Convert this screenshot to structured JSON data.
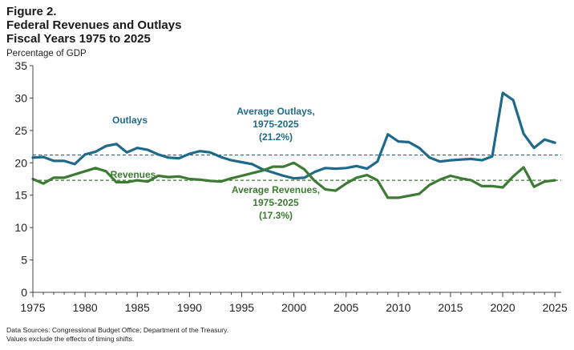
{
  "figure": {
    "label": "Figure 2.",
    "title": "Federal Revenues and Outlays",
    "subtitle": "Fiscal Years 1975 to 2025",
    "unit": "Percentage of GDP"
  },
  "colors": {
    "outlays": "#1f6a8a",
    "revenues": "#3d7a34",
    "axis": "#444444"
  },
  "chart_data": {
    "type": "line",
    "title": "Federal Revenues and Outlays",
    "subtitle": "Fiscal Years 1975 to 2025",
    "ylabel": "Percentage of GDP",
    "xlim": [
      1975,
      2025
    ],
    "ylim": [
      0,
      35
    ],
    "yticks": [
      0,
      5,
      10,
      15,
      20,
      25,
      30,
      35
    ],
    "xticks": [
      1975,
      1980,
      1985,
      1990,
      1995,
      2000,
      2005,
      2010,
      2015,
      2020,
      2025
    ],
    "grid": false,
    "x": [
      1975,
      1976,
      1977,
      1978,
      1979,
      1980,
      1981,
      1982,
      1983,
      1984,
      1985,
      1986,
      1987,
      1988,
      1989,
      1990,
      1991,
      1992,
      1993,
      1994,
      1995,
      1996,
      1997,
      1998,
      1999,
      2000,
      2001,
      2002,
      2003,
      2004,
      2005,
      2006,
      2007,
      2008,
      2009,
      2010,
      2011,
      2012,
      2013,
      2014,
      2015,
      2016,
      2017,
      2018,
      2019,
      2020,
      2021,
      2022,
      2023,
      2024,
      2025
    ],
    "series": [
      {
        "name": "Outlays",
        "color": "#1f6a8a",
        "values": [
          20.8,
          20.9,
          20.3,
          20.3,
          19.8,
          21.3,
          21.7,
          22.6,
          22.9,
          21.6,
          22.3,
          22.0,
          21.3,
          20.8,
          20.7,
          21.4,
          21.8,
          21.6,
          20.9,
          20.4,
          20.1,
          19.8,
          19.0,
          18.5,
          18.0,
          17.6,
          17.7,
          18.6,
          19.2,
          19.1,
          19.2,
          19.5,
          19.1,
          20.2,
          24.4,
          23.3,
          23.2,
          22.3,
          20.8,
          20.2,
          20.4,
          20.5,
          20.6,
          20.4,
          21.0,
          30.8,
          29.7,
          24.5,
          22.3,
          23.6,
          23.1
        ]
      },
      {
        "name": "Revenues",
        "color": "#3d7a34",
        "values": [
          17.5,
          16.8,
          17.7,
          17.7,
          18.2,
          18.7,
          19.2,
          18.7,
          17.0,
          17.0,
          17.3,
          17.1,
          18.0,
          17.8,
          17.9,
          17.5,
          17.4,
          17.2,
          17.1,
          17.6,
          18.0,
          18.4,
          18.8,
          19.4,
          19.4,
          20.0,
          19.0,
          17.2,
          15.9,
          15.7,
          16.8,
          17.7,
          18.1,
          17.3,
          14.6,
          14.6,
          14.9,
          15.2,
          16.6,
          17.4,
          18.0,
          17.6,
          17.3,
          16.4,
          16.4,
          16.2,
          17.9,
          19.3,
          16.3,
          17.1,
          17.3
        ]
      }
    ],
    "reference_lines": [
      {
        "name": "Average Outlays, 1975-2025",
        "value": 21.2,
        "style": "dashed",
        "color": "#1f6a8a"
      },
      {
        "name": "Average Revenues, 1975-2025",
        "value": 17.3,
        "style": "dashed",
        "color": "#3d7a34"
      }
    ],
    "annotations": {
      "outlays_label": "Outlays",
      "revenues_label": "Revenues",
      "avg_outlays_line1": "Average Outlays,",
      "avg_outlays_line2": "1975-2025",
      "avg_outlays_line3": "(21.2%)",
      "avg_revenues_line1": "Average Revenues,",
      "avg_revenues_line2": "1975-2025",
      "avg_revenues_line3": "(17.3%)"
    }
  },
  "notes": {
    "sources": "Data Sources: Congressional Budget Office; Department of the Treasury.",
    "caveat": "Values exclude the effects of timing shifts."
  }
}
